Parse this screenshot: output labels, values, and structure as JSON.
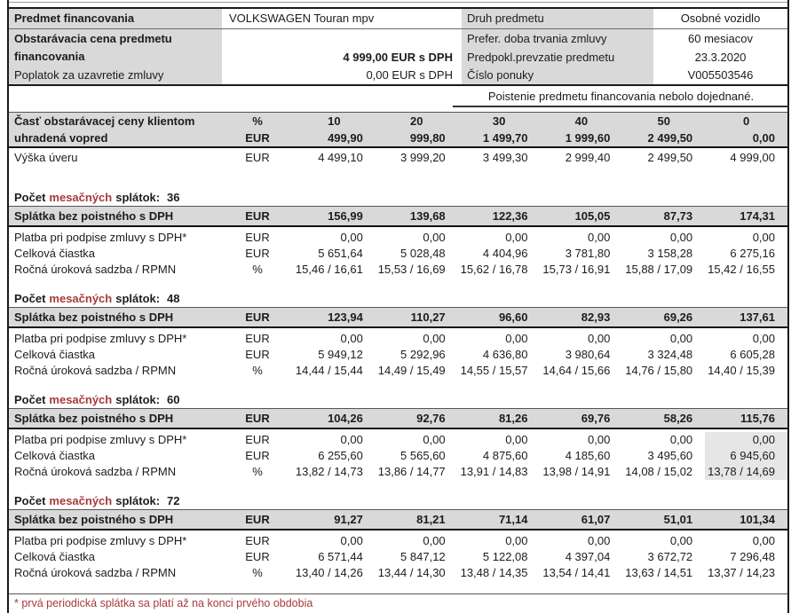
{
  "colors": {
    "grey_fill": "#d9d9d9",
    "highlight_fill": "#e6e6e6",
    "accent_red": "#a83a3a"
  },
  "header": {
    "subject_label": "Predmet financovania",
    "subject_value": "VOLKSWAGEN Touran mpv",
    "kind_label": "Druh predmetu",
    "kind_value": "Osobné vozidlo",
    "price_label_line1": "Obstarávacia cena predmetu",
    "price_label_line2": "financovania",
    "price_value": "4 999,00 EUR s DPH",
    "duration_label": "Prefer. doba trvania zmluvy",
    "duration_value": "60 mesiacov",
    "handover_label": "Predpokl.prevzatie predmetu",
    "handover_value": "23.3.2020",
    "fee_label": "Poplatok za uzavretie zmluvy",
    "fee_value": "0,00 EUR s DPH",
    "offer_label": "Číslo ponuky",
    "offer_value": "V005503546",
    "insurance_note": "Poistenie predmetu financovania nebolo dojednané."
  },
  "table_header": {
    "label_line1": "Časť obstarávacej ceny klientom",
    "label_line2": "uhradená vopred",
    "unit_pct": "%",
    "unit_eur": "EUR",
    "percents": [
      "10",
      "20",
      "30",
      "40",
      "50",
      "0"
    ],
    "amounts": [
      "499,90",
      "999,80",
      "1 499,70",
      "1 999,60",
      "2 499,50",
      "0,00"
    ]
  },
  "loan": {
    "label": "Výška úveru",
    "unit": "EUR",
    "values": [
      "4 499,10",
      "3 999,20",
      "3 499,30",
      "2 999,40",
      "2 499,50",
      "4 999,00"
    ]
  },
  "count_row": {
    "prefix": "Počet",
    "red_word": "mesačných",
    "suffix": "splátok:"
  },
  "row_labels": {
    "installment": "Splátka bez poistného s DPH",
    "signing": "Platba pri podpise zmluvy s DPH*",
    "total": "Celková čiastka",
    "rate": "Ročná úroková sadzba / RPMN"
  },
  "units": {
    "eur": "EUR",
    "pct": "%"
  },
  "blocks": [
    {
      "count": "36",
      "installment": [
        "156,99",
        "139,68",
        "122,36",
        "105,05",
        "87,73",
        "174,31"
      ],
      "signing": [
        "0,00",
        "0,00",
        "0,00",
        "0,00",
        "0,00",
        "0,00"
      ],
      "total": [
        "5 651,64",
        "5 028,48",
        "4 404,96",
        "3 781,80",
        "3 158,28",
        "6 275,16"
      ],
      "rate": [
        "15,46 / 16,61",
        "15,53 / 16,69",
        "15,62 / 16,78",
        "15,73 / 16,91",
        "15,88 / 17,09",
        "15,42 / 16,55"
      ]
    },
    {
      "count": "48",
      "installment": [
        "123,94",
        "110,27",
        "96,60",
        "82,93",
        "69,26",
        "137,61"
      ],
      "signing": [
        "0,00",
        "0,00",
        "0,00",
        "0,00",
        "0,00",
        "0,00"
      ],
      "total": [
        "5 949,12",
        "5 292,96",
        "4 636,80",
        "3 980,64",
        "3 324,48",
        "6 605,28"
      ],
      "rate": [
        "14,44 / 15,44",
        "14,49 / 15,49",
        "14,55 / 15,57",
        "14,64 / 15,66",
        "14,76 / 15,80",
        "14,40 / 15,39"
      ]
    },
    {
      "count": "60",
      "installment": [
        "104,26",
        "92,76",
        "81,26",
        "69,76",
        "58,26",
        "115,76"
      ],
      "signing": [
        "0,00",
        "0,00",
        "0,00",
        "0,00",
        "0,00",
        "0,00"
      ],
      "total": [
        "6 255,60",
        "5 565,60",
        "4 875,60",
        "4 185,60",
        "3 495,60",
        "6 945,60"
      ],
      "rate": [
        "13,82 / 14,73",
        "13,86 / 14,77",
        "13,91 / 14,83",
        "13,98 / 14,91",
        "14,08 / 15,02",
        "13,78 / 14,69"
      ]
    },
    {
      "count": "72",
      "installment": [
        "91,27",
        "81,21",
        "71,14",
        "61,07",
        "51,01",
        "101,34"
      ],
      "signing": [
        "0,00",
        "0,00",
        "0,00",
        "0,00",
        "0,00",
        "0,00"
      ],
      "total": [
        "6 571,44",
        "5 847,12",
        "5 122,08",
        "4 397,04",
        "3 672,72",
        "7 296,48"
      ],
      "rate": [
        "13,40 / 14,26",
        "13,44 / 14,30",
        "13,48 / 14,35",
        "13,54 / 14,41",
        "13,63 / 14,51",
        "13,37 / 14,23"
      ]
    }
  ],
  "footnote": "* prvá periodická splátka sa platí až na konci prvého obdobia"
}
